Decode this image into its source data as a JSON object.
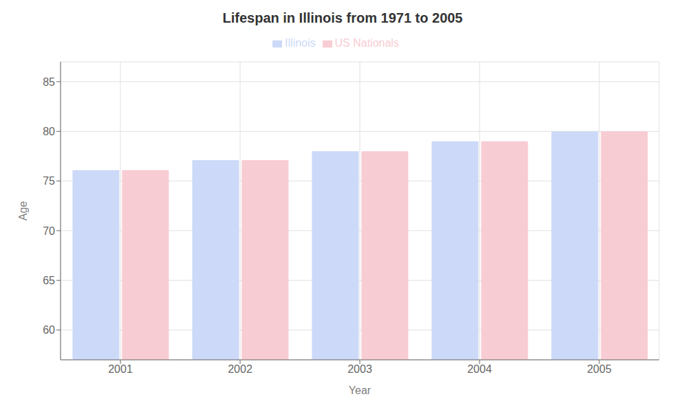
{
  "chart_data": {
    "type": "bar",
    "title": "Lifespan in Illinois from 1971 to 2005",
    "x_label": "Year",
    "y_label": "Age",
    "categories": [
      "2001",
      "2002",
      "2003",
      "2004",
      "2005"
    ],
    "series": [
      {
        "name": "Illinois",
        "color": "#ccd9f8",
        "values": [
          76.1,
          77.1,
          78.0,
          79.0,
          80.0
        ]
      },
      {
        "name": "US Nationals",
        "color": "#f8ccd3",
        "values": [
          76.1,
          77.1,
          78.0,
          79.0,
          80.0
        ]
      }
    ],
    "ylim": [
      57,
      87
    ],
    "yticks": [
      60,
      65,
      70,
      75,
      80,
      85
    ],
    "grid": true,
    "legend": "top"
  }
}
